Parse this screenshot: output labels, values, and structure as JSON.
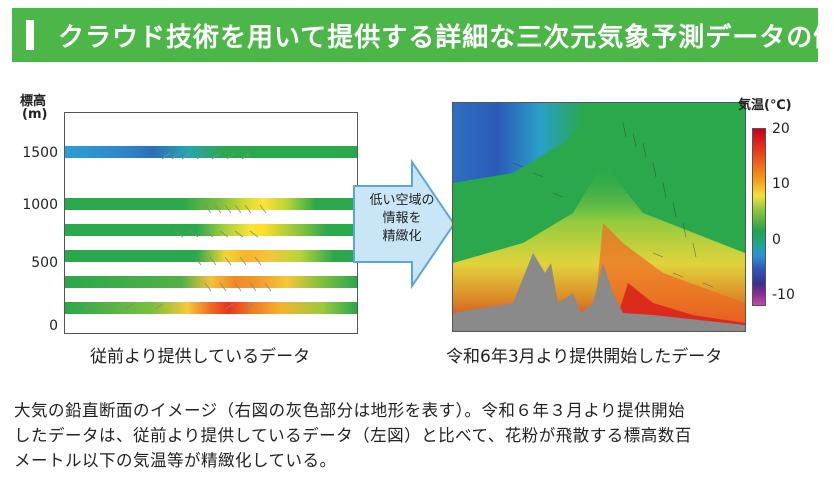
{
  "title": "クラウド技術を用いて提供する詳細な三次元気象予測データの例",
  "left_chart": {
    "ylabel_line1": "標高",
    "ylabel_line2": "(m)",
    "ticks": [
      "1500",
      "1000",
      "500",
      "0"
    ],
    "caption": "従前より提供しているデータ"
  },
  "arrow": {
    "lines": [
      "低い空域の",
      "情報を",
      "精緻化"
    ]
  },
  "right_chart": {
    "caption": "令和6年3月より提供開始したデータ",
    "colorbar_label": "気温(℃)",
    "colorbar_ticks": [
      "20",
      "10",
      "0",
      "-10"
    ]
  },
  "description": [
    "大気の鉛直断面のイメージ（右図の灰色部分は地形を表す）。令和６年３月より提供開始",
    "したデータは、従前より提供しているデータ（左図）と比べて、花粉が飛散する標高数百",
    "メートル以下の気温等が精緻化している。"
  ],
  "colors": {
    "banner": "#4cb648",
    "terrain": "#8a8a8a",
    "arrow_fill": "#c9e6f6",
    "arrow_stroke": "#5aa6d6"
  }
}
